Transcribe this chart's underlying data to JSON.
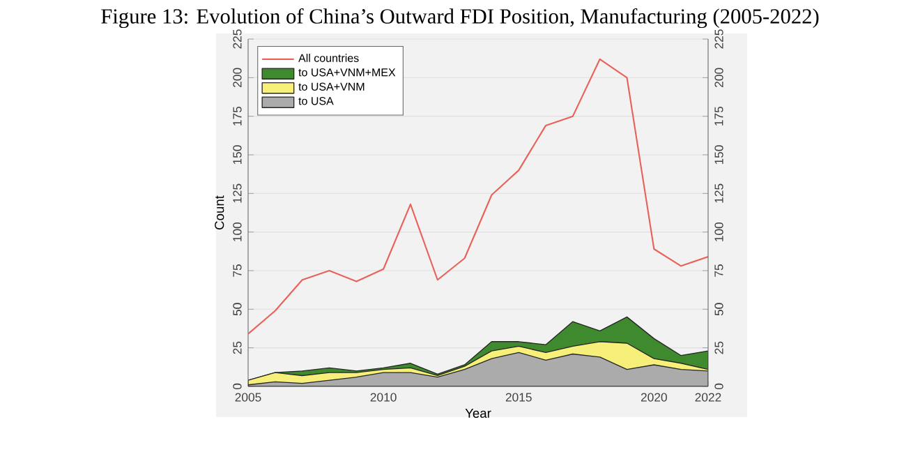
{
  "chart_data": {
    "type": "area",
    "title": "Figure 13: Evolution of China’s Outward FDI Position, Manufacturing (2005-2022)",
    "xlabel": "Year",
    "ylabel": "Count",
    "x": [
      2005,
      2006,
      2007,
      2008,
      2009,
      2010,
      2011,
      2012,
      2013,
      2014,
      2015,
      2016,
      2017,
      2018,
      2019,
      2020,
      2021,
      2022
    ],
    "series": [
      {
        "name": "All countries",
        "type": "line",
        "color": "#e8625a",
        "values": [
          34,
          49,
          69,
          75,
          68,
          76,
          118,
          69,
          83,
          124,
          140,
          169,
          175,
          212,
          200,
          89,
          78,
          84
        ]
      },
      {
        "name": "to USA+VNM+MEX",
        "color": "#3f8a2e",
        "values": [
          4,
          9,
          10,
          12,
          10,
          12,
          15,
          8,
          14,
          29,
          29,
          27,
          42,
          36,
          45,
          31,
          20,
          23
        ]
      },
      {
        "name": "to USA+VNM",
        "color": "#f6f07a",
        "values": [
          4,
          9,
          7,
          9,
          9,
          11,
          12,
          7,
          13,
          23,
          26,
          22,
          26,
          29,
          28,
          18,
          15,
          11
        ]
      },
      {
        "name": "to USA",
        "color": "#ababab",
        "values": [
          1,
          3,
          2,
          4,
          6,
          9,
          9,
          6,
          11,
          18,
          22,
          17,
          21,
          19,
          11,
          14,
          11,
          10
        ]
      }
    ],
    "xlim": [
      2005,
      2022
    ],
    "xticks": [
      2005,
      2010,
      2015,
      2020,
      2022
    ],
    "ylim": [
      0,
      225
    ],
    "yticks": [
      0,
      25,
      50,
      75,
      100,
      125,
      150,
      175,
      200,
      225
    ],
    "y2lim": [
      0,
      225
    ],
    "y2ticks": [
      0,
      25,
      50,
      75,
      100,
      125,
      150,
      175,
      200,
      225
    ],
    "grid": "y",
    "legend": "top left"
  }
}
